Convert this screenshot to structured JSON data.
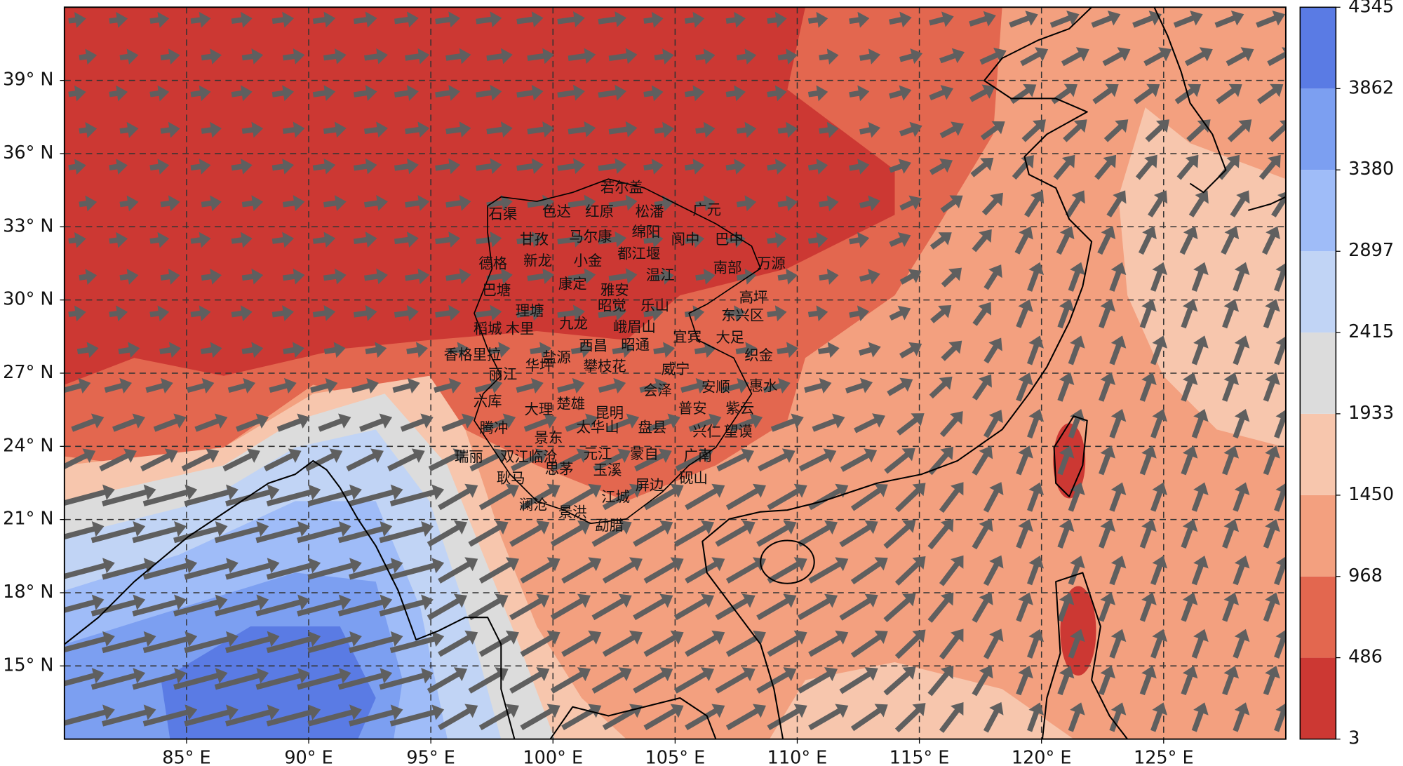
{
  "map": {
    "xlim": [
      80,
      130
    ],
    "ylim": [
      12,
      42
    ],
    "xticks": [
      {
        "value": 85,
        "label": "85° E"
      },
      {
        "value": 90,
        "label": "90° E"
      },
      {
        "value": 95,
        "label": "95° E"
      },
      {
        "value": 100,
        "label": "100° E"
      },
      {
        "value": 105,
        "label": "105° E"
      },
      {
        "value": 110,
        "label": "110° E"
      },
      {
        "value": 115,
        "label": "115° E"
      },
      {
        "value": 120,
        "label": "120° E"
      },
      {
        "value": 125,
        "label": "125° E"
      }
    ],
    "yticks": [
      {
        "value": 15,
        "label": "15° N"
      },
      {
        "value": 18,
        "label": "18° N"
      },
      {
        "value": 21,
        "label": "21° N"
      },
      {
        "value": 24,
        "label": "24° N"
      },
      {
        "value": 27,
        "label": "27° N"
      },
      {
        "value": 30,
        "label": "30° N"
      },
      {
        "value": 33,
        "label": "33° N"
      },
      {
        "value": 36,
        "label": "36° N"
      },
      {
        "value": 39,
        "label": "39° N"
      }
    ],
    "grid": true,
    "colorbar": {
      "levels": [
        3,
        486,
        968,
        1450,
        1933,
        2415,
        2897,
        3380,
        3862,
        4345
      ],
      "colors": [
        "#cc3833",
        "#e3674f",
        "#f3a07f",
        "#f7c6ad",
        "#dcdcdc",
        "#c1d4f5",
        "#9fbcf8",
        "#7c9ff1",
        "#5a7be4"
      ]
    },
    "cities": [
      "若尔盖",
      "石渠",
      "色达",
      "红原",
      "松潘",
      "广元",
      "甘孜",
      "马尔康",
      "绵阳",
      "阆中",
      "巴中",
      "德格",
      "新龙",
      "小金",
      "都江堰",
      "南部",
      "万源",
      "温江",
      "巴塘",
      "康定",
      "雅安",
      "高坪",
      "理塘",
      "昭觉",
      "乐山",
      "东兴区",
      "九龙",
      "峨眉山",
      "稻城",
      "木里",
      "西昌",
      "昭通",
      "宜宾",
      "大足",
      "香格里拉",
      "盐源",
      "织金",
      "丽江",
      "华坪",
      "攀枝花",
      "威宁",
      "安顺",
      "惠水",
      "六库",
      "大理",
      "楚雄",
      "会泽",
      "昆明",
      "普安",
      "紫云",
      "腾冲",
      "太华山",
      "盘县",
      "兴仁",
      "望谟",
      "景东",
      "瑞丽",
      "双江",
      "临沧",
      "元江",
      "蒙自",
      "广南",
      "耿马",
      "思茅",
      "玉溪",
      "屏边",
      "砚山",
      "江城",
      "澜沧",
      "景洪",
      "勐腊"
    ]
  }
}
